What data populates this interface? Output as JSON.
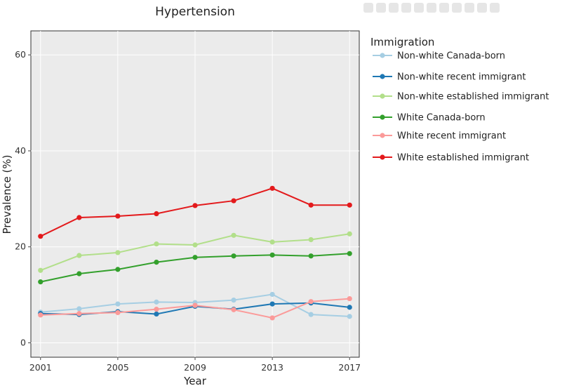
{
  "chart_data": {
    "type": "line",
    "title": "Hypertension",
    "xlabel": "Year",
    "ylabel": "Prevalence (%)",
    "xlim": [
      2000.5,
      2017.5
    ],
    "ylim": [
      -3,
      65
    ],
    "x": [
      2001,
      2003,
      2005,
      2007,
      2009,
      2011,
      2013,
      2015,
      2017
    ],
    "x_ticks": [
      2001,
      2005,
      2009,
      2013,
      2017
    ],
    "y_ticks": [
      0,
      20,
      40,
      60
    ],
    "grid": true,
    "legend": {
      "title": "Immigration",
      "position": "right"
    },
    "series": [
      {
        "name": "Non-white Canada-born",
        "color": "#a6cee3",
        "values": [
          6.4,
          7.1,
          8.1,
          8.5,
          8.4,
          8.9,
          10.1,
          5.9,
          5.5
        ]
      },
      {
        "name": "Non-white recent immigrant",
        "color": "#1f78b4",
        "values": [
          6.1,
          5.9,
          6.5,
          6.0,
          7.6,
          7.0,
          8.1,
          8.3,
          7.4
        ]
      },
      {
        "name": "Non-white established immigrant",
        "color": "#b2df8a",
        "values": [
          15.1,
          18.2,
          18.8,
          20.6,
          20.4,
          22.4,
          21.0,
          21.5,
          22.7
        ]
      },
      {
        "name": "White Canada-born",
        "color": "#33a02c",
        "values": [
          12.7,
          14.4,
          15.3,
          16.8,
          17.8,
          18.1,
          18.3,
          18.1,
          18.6
        ]
      },
      {
        "name": "White recent immigrant",
        "color": "#fb9a99",
        "values": [
          5.8,
          6.1,
          6.3,
          7.0,
          7.8,
          6.9,
          5.2,
          8.6,
          9.2
        ]
      },
      {
        "name": "White established immigrant",
        "color": "#e31a1c",
        "values": [
          22.2,
          26.1,
          26.4,
          26.9,
          28.6,
          29.6,
          32.2,
          28.7,
          28.7
        ]
      }
    ]
  }
}
